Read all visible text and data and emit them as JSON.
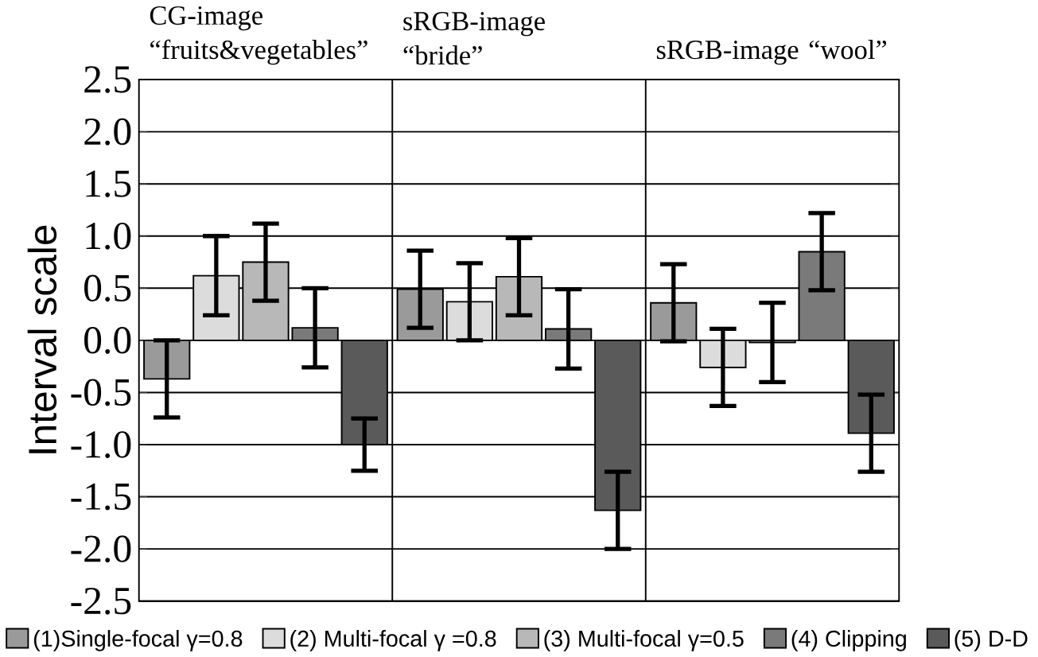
{
  "chart_data": {
    "type": "bar",
    "ylabel": "Interval scale",
    "categories": [
      "CG-image “fruits&vegetables”",
      "sRGB-image “bride”",
      "sRGB-image “wool”"
    ],
    "series": [
      {
        "name": "(1)Single-focal γ=0.8",
        "color": "#9a9a9a",
        "values": [
          -0.37,
          0.49,
          0.36
        ],
        "errors": [
          0.37,
          0.37,
          0.37
        ]
      },
      {
        "name": "(2) Multi-focal  γ =0.8",
        "color": "#dcdcdc",
        "values": [
          0.62,
          0.37,
          -0.26
        ],
        "errors": [
          0.38,
          0.37,
          0.37
        ]
      },
      {
        "name": "(3) Multi-focal γ=0.5",
        "color": "#b8b8b8",
        "values": [
          0.75,
          0.61,
          -0.02
        ],
        "errors": [
          0.37,
          0.37,
          0.38
        ]
      },
      {
        "name": "(4) Clipping",
        "color": "#7a7a7a",
        "values": [
          0.12,
          0.11,
          0.85
        ],
        "errors": [
          0.38,
          0.38,
          0.37
        ]
      },
      {
        "name": "(5) D-D",
        "color": "#5a5a5a",
        "values": [
          -1.0,
          -1.63,
          -0.89
        ],
        "errors": [
          0.25,
          0.37,
          0.37
        ]
      }
    ],
    "ylim": [
      -2.5,
      2.5
    ],
    "yticks": [
      {
        "value": -2.5,
        "label": "-2.5"
      },
      {
        "value": -2.0,
        "label": "-2.0"
      },
      {
        "value": -1.5,
        "label": "-1.5"
      },
      {
        "value": -1.0,
        "label": "-1.0"
      },
      {
        "value": -0.5,
        "label": "-0.5"
      },
      {
        "value": 0.0,
        "label": "0.0"
      },
      {
        "value": 0.5,
        "label": "0.5"
      },
      {
        "value": 1.0,
        "label": "1.0"
      },
      {
        "value": 1.5,
        "label": "1.5"
      },
      {
        "value": 2.0,
        "label": "2.0"
      },
      {
        "value": 2.5,
        "label": "2.5"
      }
    ],
    "grid": true,
    "legend": "bottom"
  }
}
